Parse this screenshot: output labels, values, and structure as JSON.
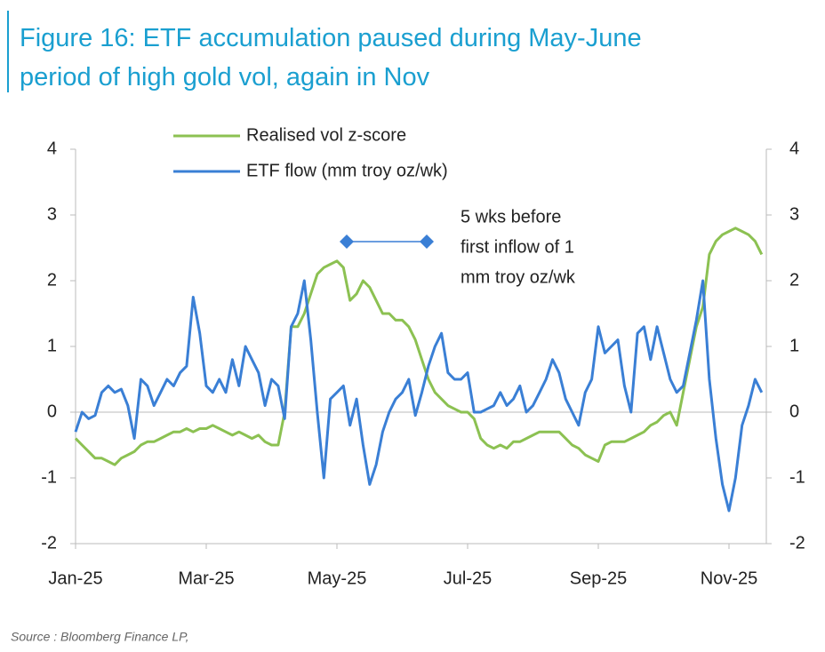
{
  "chart_data": {
    "type": "line",
    "title_lines": [
      "Figure 16: ETF accumulation paused during May-June",
      "period of high gold vol, again in Nov"
    ],
    "source": "Source : Bloomberg Finance LP,",
    "annotation_lines": [
      "5 wks before",
      "first inflow of 1",
      "mm troy oz/wk"
    ],
    "categories": [
      "Jan-25",
      null,
      null,
      null,
      null,
      null,
      null,
      null,
      null,
      null,
      null,
      null,
      null,
      null,
      null,
      null,
      null,
      null,
      null,
      null,
      "Mar-25",
      null,
      null,
      null,
      null,
      null,
      null,
      null,
      null,
      null,
      null,
      null,
      null,
      null,
      null,
      null,
      null,
      null,
      null,
      null,
      "May-25",
      null,
      null,
      null,
      null,
      null,
      null,
      null,
      null,
      null,
      null,
      null,
      null,
      null,
      null,
      null,
      null,
      null,
      null,
      null,
      "Jul-25",
      null,
      null,
      null,
      null,
      null,
      null,
      null,
      null,
      null,
      null,
      null,
      null,
      null,
      null,
      null,
      null,
      null,
      null,
      null,
      "Sep-25",
      null,
      null,
      null,
      null,
      null,
      null,
      null,
      null,
      null,
      null,
      null,
      null,
      null,
      null,
      null,
      null,
      null,
      null,
      null,
      "Nov-25",
      null,
      null,
      null,
      null,
      null
    ],
    "series": [
      {
        "name": "Realised vol z-score",
        "color": "#8cc152",
        "values": [
          -0.4,
          -0.5,
          -0.6,
          -0.7,
          -0.7,
          -0.75,
          -0.8,
          -0.7,
          -0.65,
          -0.6,
          -0.5,
          -0.45,
          -0.45,
          -0.4,
          -0.35,
          -0.3,
          -0.3,
          -0.25,
          -0.3,
          -0.25,
          -0.25,
          -0.2,
          -0.25,
          -0.3,
          -0.35,
          -0.3,
          -0.35,
          -0.4,
          -0.35,
          -0.45,
          -0.5,
          -0.5,
          0.0,
          1.3,
          1.3,
          1.5,
          1.8,
          2.1,
          2.2,
          2.25,
          2.3,
          2.2,
          1.7,
          1.8,
          2.0,
          1.9,
          1.7,
          1.5,
          1.5,
          1.4,
          1.4,
          1.3,
          1.1,
          0.8,
          0.5,
          0.3,
          0.2,
          0.1,
          0.05,
          0.0,
          0.0,
          -0.1,
          -0.4,
          -0.5,
          -0.55,
          -0.5,
          -0.55,
          -0.45,
          -0.45,
          -0.4,
          -0.35,
          -0.3,
          -0.3,
          -0.3,
          -0.3,
          -0.4,
          -0.5,
          -0.55,
          -0.65,
          -0.7,
          -0.75,
          -0.5,
          -0.45,
          -0.45,
          -0.45,
          -0.4,
          -0.35,
          -0.3,
          -0.2,
          -0.15,
          -0.05,
          0.0,
          -0.2,
          0.3,
          0.8,
          1.3,
          1.6,
          2.4,
          2.6,
          2.7,
          2.75,
          2.8,
          2.75,
          2.7,
          2.6,
          2.4
        ]
      },
      {
        "name": "ETF flow (mm troy oz/wk)",
        "color": "#3a7fd5",
        "values": [
          -0.3,
          0.0,
          -0.1,
          -0.05,
          0.3,
          0.4,
          0.3,
          0.35,
          0.1,
          -0.4,
          0.5,
          0.4,
          0.1,
          0.3,
          0.5,
          0.4,
          0.6,
          0.7,
          1.75,
          1.2,
          0.4,
          0.3,
          0.5,
          0.3,
          0.8,
          0.4,
          1.0,
          0.8,
          0.6,
          0.1,
          0.5,
          0.4,
          -0.1,
          1.3,
          1.5,
          2.0,
          1.1,
          0.0,
          -1.0,
          0.2,
          0.3,
          0.4,
          -0.2,
          0.2,
          -0.5,
          -1.1,
          -0.8,
          -0.3,
          0.0,
          0.2,
          0.3,
          0.5,
          -0.05,
          0.3,
          0.7,
          1.0,
          1.2,
          0.6,
          0.5,
          0.5,
          0.6,
          0.0,
          0.0,
          0.05,
          0.1,
          0.3,
          0.1,
          0.2,
          0.4,
          0.0,
          0.1,
          0.3,
          0.5,
          0.8,
          0.6,
          0.2,
          0.0,
          -0.2,
          0.3,
          0.5,
          1.3,
          0.9,
          1.0,
          1.1,
          0.4,
          0.0,
          1.2,
          1.3,
          0.8,
          1.3,
          0.9,
          0.5,
          0.3,
          0.4,
          0.9,
          1.4,
          2.0,
          0.5,
          -0.4,
          -1.1,
          -1.5,
          -1.0,
          -0.2,
          0.1,
          0.5,
          0.3
        ]
      }
    ],
    "ylim": [
      -2,
      4
    ],
    "yticks": [
      -2,
      -1,
      0,
      1,
      2,
      3,
      4
    ],
    "y2lim": [
      -2,
      4
    ],
    "y2ticks": [
      -2,
      -1,
      0,
      1,
      2,
      3,
      4
    ],
    "legend": "top"
  }
}
